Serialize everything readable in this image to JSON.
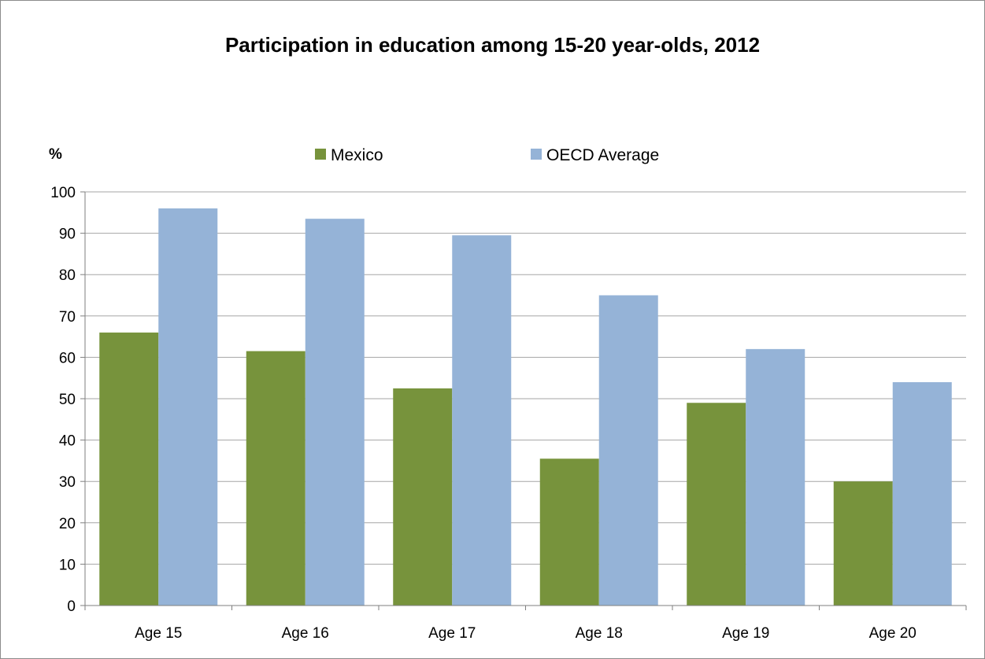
{
  "colors": {
    "mexico": "#77933c",
    "oecd": "#95b3d7",
    "gridline": "#a6a6a6",
    "axis": "#7f7f7f"
  },
  "chart_data": {
    "type": "bar",
    "title": "Participation in education among 15-20 year-olds, 2012",
    "ylabel": "%",
    "xlabel": "",
    "categories": [
      "Age 15",
      "Age 16",
      "Age 17",
      "Age 18",
      "Age 19",
      "Age 20"
    ],
    "series": [
      {
        "name": "Mexico",
        "values": [
          66,
          61.5,
          52.5,
          35.5,
          49,
          30
        ]
      },
      {
        "name": "OECD Average",
        "values": [
          96,
          93.5,
          89.5,
          75,
          62,
          54
        ]
      }
    ],
    "ylim": [
      0,
      100
    ],
    "yticks": [
      0,
      10,
      20,
      30,
      40,
      50,
      60,
      70,
      80,
      90,
      100
    ],
    "grid": true,
    "legend_position": "top"
  }
}
